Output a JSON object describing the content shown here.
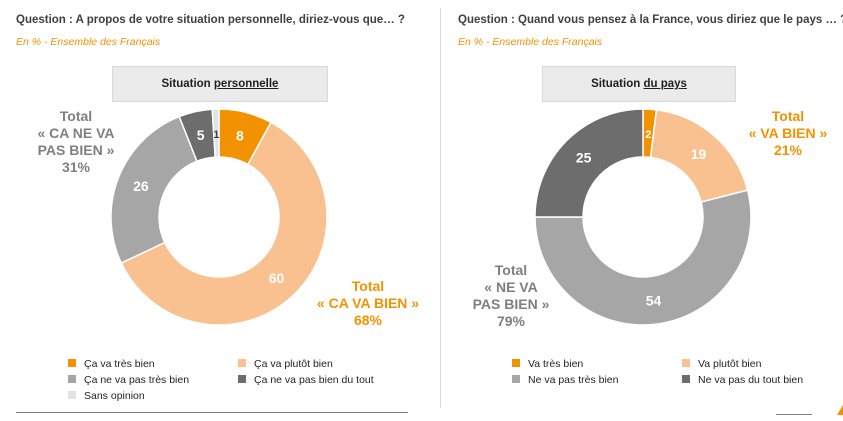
{
  "left": {
    "question": "Question : A propos de votre situation personnelle, diriez-vous que… ?",
    "subtitle": "En % - Ensemble des Français",
    "box_title_plain": "Situation ",
    "box_title_underlined": "personnelle",
    "annot_good": [
      "Total",
      "« CA VA BIEN »",
      "68%"
    ],
    "annot_bad": [
      "Total",
      "« CA NE VA",
      "PAS BIEN »",
      "31%"
    ],
    "legend": [
      "Ça va très bien",
      "Ça va plutôt bien",
      "Ça ne va pas très bien",
      "Ça ne va pas bien du tout",
      "Sans opinion"
    ]
  },
  "right": {
    "question": "Question : Quand vous pensez à la France, vous diriez que le pays … ?",
    "subtitle": "En % - Ensemble des Français",
    "box_title_plain": "Situation ",
    "box_title_underlined": "du pays",
    "annot_good": [
      "Total",
      "« VA BIEN »",
      "21%"
    ],
    "annot_bad": [
      "Total",
      "« NE VA",
      "PAS BIEN »",
      "79%"
    ],
    "legend": [
      "Va très bien",
      "Va plutôt bien",
      "Ne va pas très bien",
      "Ne va pas du tout bien"
    ]
  },
  "colors": {
    "tres_bien": "#f39200",
    "plutot_bien": "#f9c18f",
    "pas_tres_bien": "#a6a6a6",
    "pas_du_tout": "#6d6d6d",
    "sans_opinion": "#e3e3e3"
  },
  "chart_data": [
    {
      "type": "pie",
      "title": "Situation personnelle",
      "categories": [
        "Ça va très bien",
        "Ça va plutôt bien",
        "Ça ne va pas très bien",
        "Ça ne va pas bien du tout",
        "Sans opinion"
      ],
      "values": [
        8,
        60,
        26,
        5,
        1
      ],
      "donut": true
    },
    {
      "type": "pie",
      "title": "Situation du pays",
      "categories": [
        "Va très bien",
        "Va plutôt bien",
        "Ne va pas très bien",
        "Ne va pas du tout bien"
      ],
      "values": [
        2,
        19,
        54,
        25
      ],
      "donut": true
    }
  ]
}
